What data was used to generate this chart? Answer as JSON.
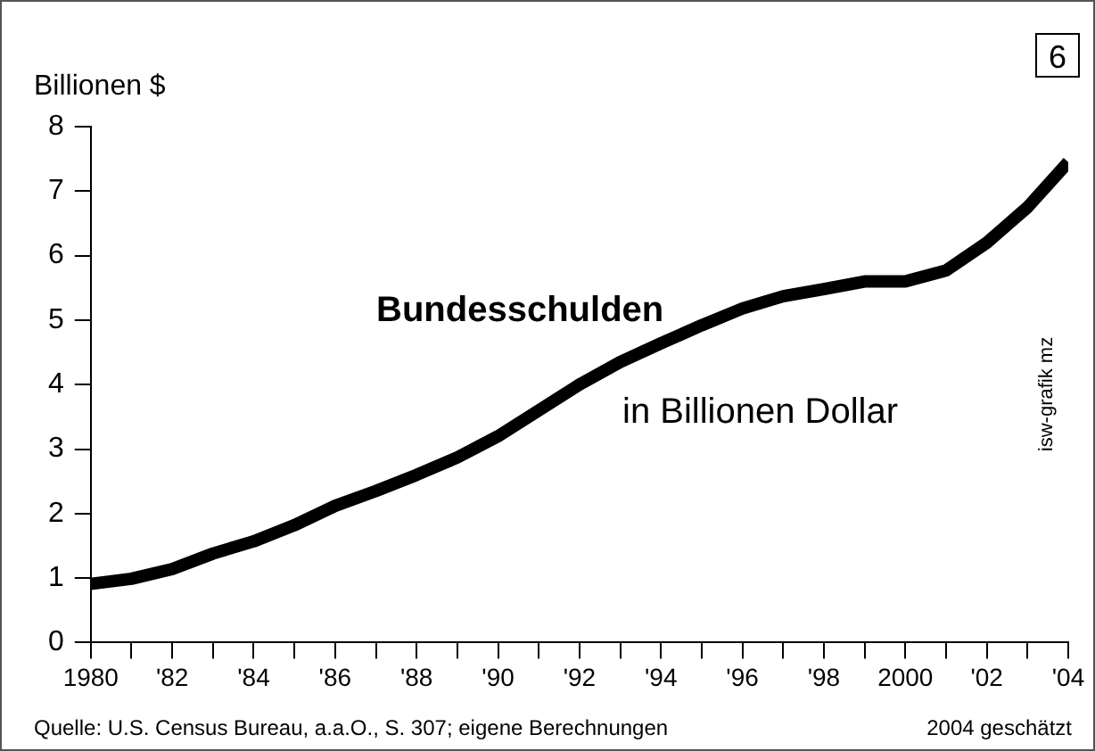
{
  "chart_data": {
    "type": "line",
    "title": "Bundesschulden",
    "subtitle": "in Billionen Dollar",
    "ylabel": "Billionen $",
    "x": [
      1980,
      1981,
      1982,
      1983,
      1984,
      1985,
      1986,
      1987,
      1988,
      1989,
      1990,
      1991,
      1992,
      1993,
      1994,
      1995,
      1996,
      1997,
      1998,
      1999,
      2000,
      2001,
      2002,
      2003,
      2004
    ],
    "series": [
      {
        "color": "#000000",
        "values": [
          0.91,
          0.99,
          1.14,
          1.38,
          1.57,
          1.82,
          2.12,
          2.35,
          2.6,
          2.87,
          3.2,
          3.6,
          4.0,
          4.35,
          4.64,
          4.92,
          5.18,
          5.37,
          5.48,
          5.6,
          5.6,
          5.77,
          6.2,
          6.75,
          7.45
        ]
      }
    ],
    "xlim": [
      1980,
      2004
    ],
    "xticks": [
      {
        "value": 1980,
        "label": "1980"
      },
      {
        "value": 1981,
        "label": null
      },
      {
        "value": 1982,
        "label": "'82"
      },
      {
        "value": 1983,
        "label": null
      },
      {
        "value": 1984,
        "label": "'84"
      },
      {
        "value": 1985,
        "label": null
      },
      {
        "value": 1986,
        "label": "'86"
      },
      {
        "value": 1987,
        "label": null
      },
      {
        "value": 1988,
        "label": "'88"
      },
      {
        "value": 1989,
        "label": null
      },
      {
        "value": 1990,
        "label": "'90"
      },
      {
        "value": 1991,
        "label": null
      },
      {
        "value": 1992,
        "label": "'92"
      },
      {
        "value": 1993,
        "label": null
      },
      {
        "value": 1994,
        "label": "'94"
      },
      {
        "value": 1995,
        "label": null
      },
      {
        "value": 1996,
        "label": "'96"
      },
      {
        "value": 1997,
        "label": null
      },
      {
        "value": 1998,
        "label": "'98"
      },
      {
        "value": 1999,
        "label": null
      },
      {
        "value": 2000,
        "label": "2000"
      },
      {
        "value": 2001,
        "label": null
      },
      {
        "value": 2002,
        "label": "'02"
      },
      {
        "value": 2003,
        "label": null
      },
      {
        "value": 2004,
        "label": "'04"
      }
    ],
    "ylim": [
      0,
      8
    ],
    "yticks": [
      0,
      1,
      2,
      3,
      4,
      5,
      6,
      7,
      8
    ],
    "grid": false,
    "legend": false,
    "marker": "none",
    "line_style": "solid",
    "annotations": [
      "6",
      "isw-grafik mz",
      "Quelle: U.S. Census Bureau, a.a.O., S. 307; eigene Berechnungen",
      "2004 geschätzt"
    ]
  }
}
